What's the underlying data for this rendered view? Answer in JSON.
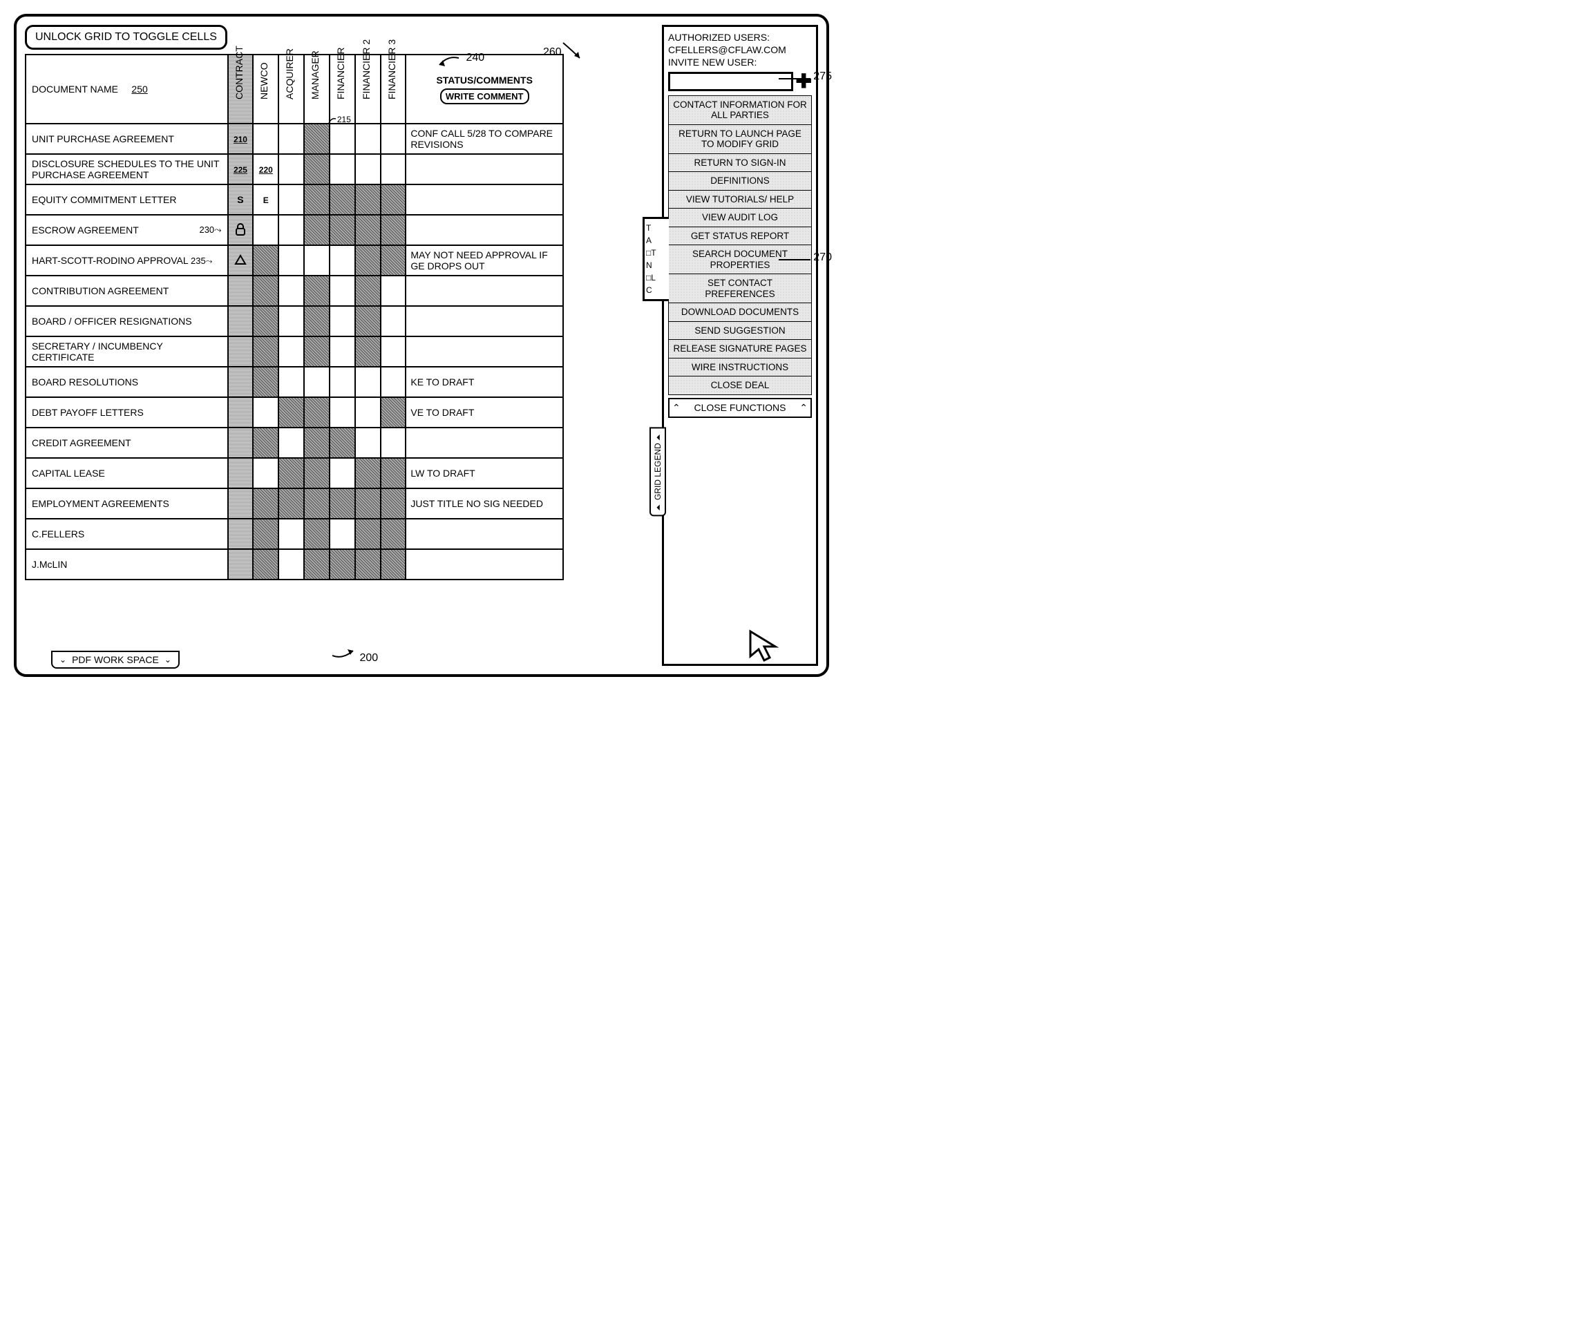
{
  "toolbar": {
    "unlock_label": "UNLOCK GRID TO TOGGLE CELLS",
    "pdf_workspace": "PDF WORK SPACE",
    "grid_legend": "GRID LEGEND"
  },
  "headers": {
    "document_name": "DOCUMENT NAME",
    "document_name_ref": "250",
    "status_comments": "STATUS/COMMENTS",
    "write_comment": "WRITE COMMENT"
  },
  "parties": [
    "CONTRACT",
    "NEWCO",
    "ACQUIRER",
    "MANAGER",
    "FINANCIER",
    "FINANCIER 2",
    "FINANCIER 3"
  ],
  "rows": [
    {
      "name": "UNIT PURCHASE AGREEMENT",
      "marks": {
        "0": "210",
        "3": "f",
        "refAt": 4,
        "refText": "215"
      },
      "cells": [
        "",
        "",
        "",
        "f",
        "",
        "",
        ""
      ],
      "status": "CONF CALL 5/28 TO COMPARE REVISIONS"
    },
    {
      "name": "DISCLOSURE SCHEDULES TO THE UNIT PURCHASE AGREEMENT",
      "marks": {
        "0": "225",
        "1": "220"
      },
      "cells": [
        "",
        "",
        "",
        "f",
        "",
        "",
        ""
      ],
      "status": ""
    },
    {
      "name": "EQUITY COMMITMENT LETTER",
      "marks": {
        "0": "S",
        "1": "E"
      },
      "cells": [
        "",
        "",
        "",
        "f",
        "f",
        "f",
        "f"
      ],
      "status": ""
    },
    {
      "name": "ESCROW AGREEMENT",
      "ref": "230",
      "icon": "lock",
      "cells": [
        "",
        "",
        "",
        "f",
        "f",
        "f",
        "f"
      ],
      "status": ""
    },
    {
      "name": "HART-SCOTT-RODINO APPROVAL",
      "ref": "235",
      "icon": "tri",
      "cells": [
        "",
        "f",
        "",
        "",
        "",
        "f",
        "f"
      ],
      "status": "MAY NOT NEED APPROVAL IF GE DROPS OUT"
    },
    {
      "name": "CONTRIBUTION AGREEMENT",
      "cells": [
        "",
        "f",
        "",
        "f",
        "",
        "f",
        ""
      ],
      "status": ""
    },
    {
      "name": "BOARD / OFFICER RESIGNATIONS",
      "cells": [
        "",
        "f",
        "",
        "f",
        "",
        "f",
        ""
      ],
      "status": ""
    },
    {
      "name": "SECRETARY / INCUMBENCY CERTIFICATE",
      "cells": [
        "",
        "f",
        "",
        "f",
        "",
        "f",
        ""
      ],
      "status": ""
    },
    {
      "name": "BOARD RESOLUTIONS",
      "cells": [
        "",
        "f",
        "",
        "",
        "",
        "",
        ""
      ],
      "status": "KE TO DRAFT"
    },
    {
      "name": "DEBT PAYOFF LETTERS",
      "cells": [
        "",
        "",
        "f",
        "f",
        "",
        "",
        "f"
      ],
      "status": "VE TO DRAFT"
    },
    {
      "name": "CREDIT AGREEMENT",
      "cells": [
        "",
        "f",
        "",
        "f",
        "f",
        "",
        ""
      ],
      "status": ""
    },
    {
      "name": "CAPITAL LEASE",
      "cells": [
        "",
        "",
        "f",
        "f",
        "",
        "f",
        "f"
      ],
      "status": "LW TO DRAFT"
    },
    {
      "name": "EMPLOYMENT AGREEMENTS",
      "cells": [
        "",
        "f",
        "f",
        "f",
        "f",
        "f",
        "f"
      ],
      "status": "JUST TITLE NO SIG NEEDED"
    },
    {
      "name": "C.FELLERS",
      "cells": [
        "",
        "f",
        "",
        "f",
        "",
        "f",
        "f"
      ],
      "status": ""
    },
    {
      "name": "J.McLIN",
      "cells": [
        "",
        "f",
        "",
        "f",
        "f",
        "f",
        "f"
      ],
      "status": ""
    }
  ],
  "right": {
    "authorized_label": "AUTHORIZED USERS:",
    "authorized_user": "CFELLERS@CFLAW.COM",
    "invite_label": "INVITE NEW USER:",
    "functions": [
      "CONTACT INFORMATION FOR ALL PARTIES",
      "RETURN TO LAUNCH PAGE TO MODIFY GRID",
      "RETURN TO SIGN-IN",
      "DEFINITIONS",
      "VIEW TUTORIALS/ HELP",
      "VIEW AUDIT LOG",
      "GET STATUS REPORT",
      "SEARCH DOCUMENT PROPERTIES",
      "SET CONTACT PREFERENCES",
      "DOWNLOAD DOCUMENTS",
      "SEND SUGGESTION",
      "RELEASE SIGNATURE PAGES",
      "WIRE INSTRUCTIONS",
      "CLOSE DEAL"
    ],
    "close_functions": "CLOSE FUNCTIONS"
  },
  "callouts": {
    "c200": "200",
    "c240": "240",
    "c260": "260",
    "c270": "270",
    "c275": "275"
  },
  "peek_lines": [
    "T",
    "A",
    "□T",
    "N",
    "□L",
    "C"
  ]
}
